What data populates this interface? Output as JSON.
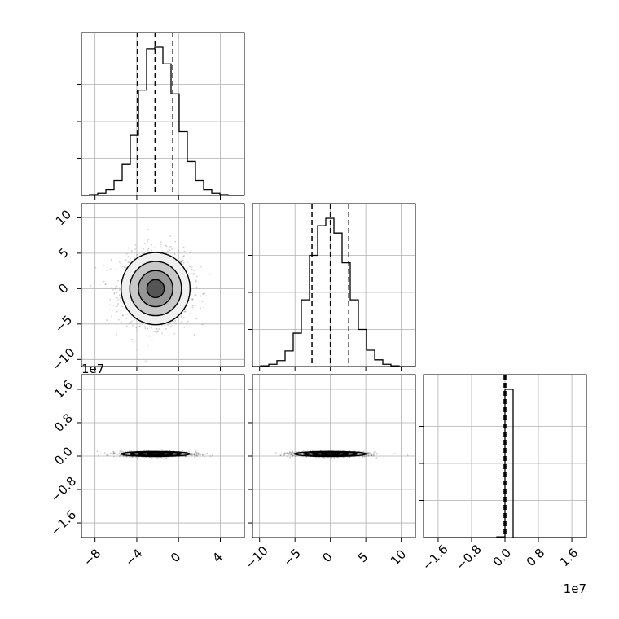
{
  "chart_data": {
    "type": "corner",
    "grid": true,
    "parameters": [
      {
        "index": 0,
        "range": [
          -9.3,
          6.3
        ],
        "ticks": [
          -8,
          -4,
          0,
          4
        ],
        "tick_labels": [
          "−8",
          "−4",
          "0",
          "4"
        ]
      },
      {
        "index": 1,
        "range": [
          -11.0,
          12.0
        ],
        "ticks": [
          -10,
          -5,
          0,
          5,
          10
        ],
        "tick_labels": [
          "−10",
          "−5",
          "0",
          "5",
          "10"
        ]
      },
      {
        "index": 2,
        "range": [
          -1.95,
          1.95
        ],
        "ticks": [
          -1.6,
          -0.8,
          0.0,
          0.8,
          1.6
        ],
        "tick_labels": [
          "−1.6",
          "−0.8",
          "0.0",
          "0.8",
          "1.6"
        ],
        "offset_text": "1e7"
      }
    ],
    "histograms": [
      {
        "param": 0,
        "bin_edges": [
          -9.3,
          -8.52,
          -7.74,
          -6.96,
          -6.18,
          -5.4,
          -4.62,
          -3.84,
          -3.06,
          -2.28,
          -1.5,
          -0.72,
          0.06,
          0.84,
          1.62,
          2.4,
          3.18,
          3.96,
          4.74,
          5.52,
          6.3
        ],
        "counts": [
          0,
          1,
          3,
          8,
          20,
          42,
          80,
          140,
          195,
          197,
          175,
          135,
          85,
          45,
          20,
          8,
          3,
          1,
          0,
          0
        ],
        "quantiles": [
          -3.95,
          -2.25,
          -0.55
        ]
      },
      {
        "param": 1,
        "bin_edges": [
          -11.0,
          -9.85,
          -8.7,
          -7.55,
          -6.4,
          -5.25,
          -4.1,
          -2.95,
          -1.8,
          -0.65,
          0.5,
          1.65,
          2.8,
          3.95,
          5.1,
          6.25,
          7.4,
          8.55,
          9.7,
          10.85,
          12.0
        ],
        "counts": [
          0,
          1,
          3,
          8,
          21,
          45,
          90,
          150,
          190,
          200,
          180,
          140,
          90,
          50,
          22,
          9,
          3,
          1,
          0,
          0
        ],
        "quantiles": [
          -2.6,
          0.0,
          2.6
        ]
      },
      {
        "param": 2,
        "bin_edges": [
          -1.95,
          -1.755,
          -1.56,
          -1.365,
          -1.17,
          -0.975,
          -0.78,
          -0.585,
          -0.39,
          -0.195,
          0.0,
          0.195,
          0.39,
          0.585,
          0.78,
          0.975,
          1.17,
          1.365,
          1.56,
          1.755,
          1.95
        ],
        "counts": [
          0,
          0,
          0,
          0,
          0,
          0,
          0,
          0,
          0,
          1,
          200,
          0,
          0,
          0,
          0,
          0,
          0,
          0,
          0,
          0
        ],
        "quantiles": [
          -0.02,
          0.0,
          0.02
        ]
      }
    ],
    "pairs": [
      {
        "x_param": 0,
        "y_param": 1,
        "center": [
          -2.2,
          0.0
        ],
        "spread": [
          1.65,
          2.55
        ],
        "contour_levels": [
          0.5,
          1.0,
          1.5,
          2.0
        ]
      },
      {
        "x_param": 0,
        "y_param": 2,
        "center": [
          -2.2,
          0.05
        ],
        "spread": [
          1.65,
          0.03
        ],
        "contour_levels": [
          0.5,
          1.0,
          1.5,
          2.0
        ]
      },
      {
        "x_param": 1,
        "y_param": 2,
        "center": [
          0.0,
          0.05
        ],
        "spread": [
          2.55,
          0.03
        ],
        "contour_levels": [
          0.5,
          1.0,
          1.5,
          2.0
        ]
      }
    ]
  }
}
